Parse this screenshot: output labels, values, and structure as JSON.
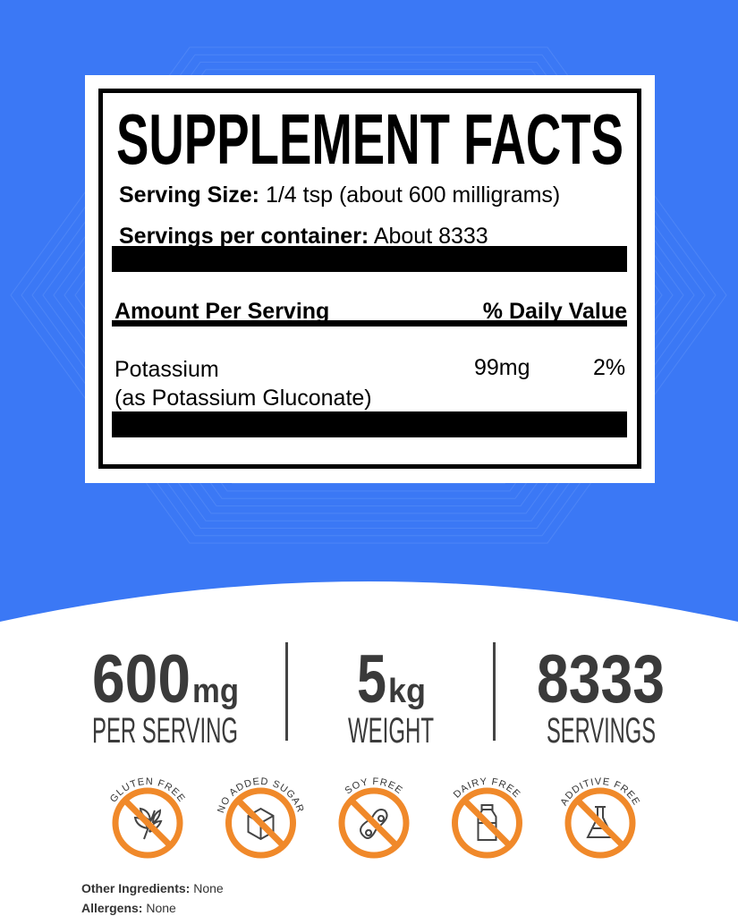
{
  "facts": {
    "title": "SUPPLEMENT FACTS",
    "serving_size_label": "Serving Size:",
    "serving_size_value": " 1/4 tsp (about 600 milligrams)",
    "servings_label": "Servings per container:",
    "servings_value": " About 8333",
    "amount_header": "Amount Per Serving",
    "dv_header": "% Daily Value",
    "ingredient_name": "Potassium",
    "ingredient_source": " (as Potassium Gluconate)",
    "ingredient_amount": "99mg",
    "ingredient_dv": "2%"
  },
  "stats": [
    {
      "value": "600",
      "unit": "mg",
      "label": "PER SERVING"
    },
    {
      "value": "5",
      "unit": "kg",
      "label": "WEIGHT"
    },
    {
      "value": "8333",
      "unit": "",
      "label": "SERVINGS"
    }
  ],
  "badges": [
    {
      "label": "GLUTEN FREE",
      "icon": "wheat-icon"
    },
    {
      "label": "NO ADDED SUGAR",
      "icon": "sugar-cube-icon"
    },
    {
      "label": "SOY FREE",
      "icon": "soybean-icon"
    },
    {
      "label": "DAIRY FREE",
      "icon": "milk-bottle-icon"
    },
    {
      "label": "ADDITIVE FREE",
      "icon": "flask-icon"
    }
  ],
  "footer": {
    "other_label": "Other Ingredients:",
    "other_value": " None",
    "allergens_label": "Allergens:",
    "allergens_value": " None"
  },
  "colors": {
    "background": "#3b78f5",
    "badge": "#f0892a",
    "text": "#3a3a3a"
  }
}
